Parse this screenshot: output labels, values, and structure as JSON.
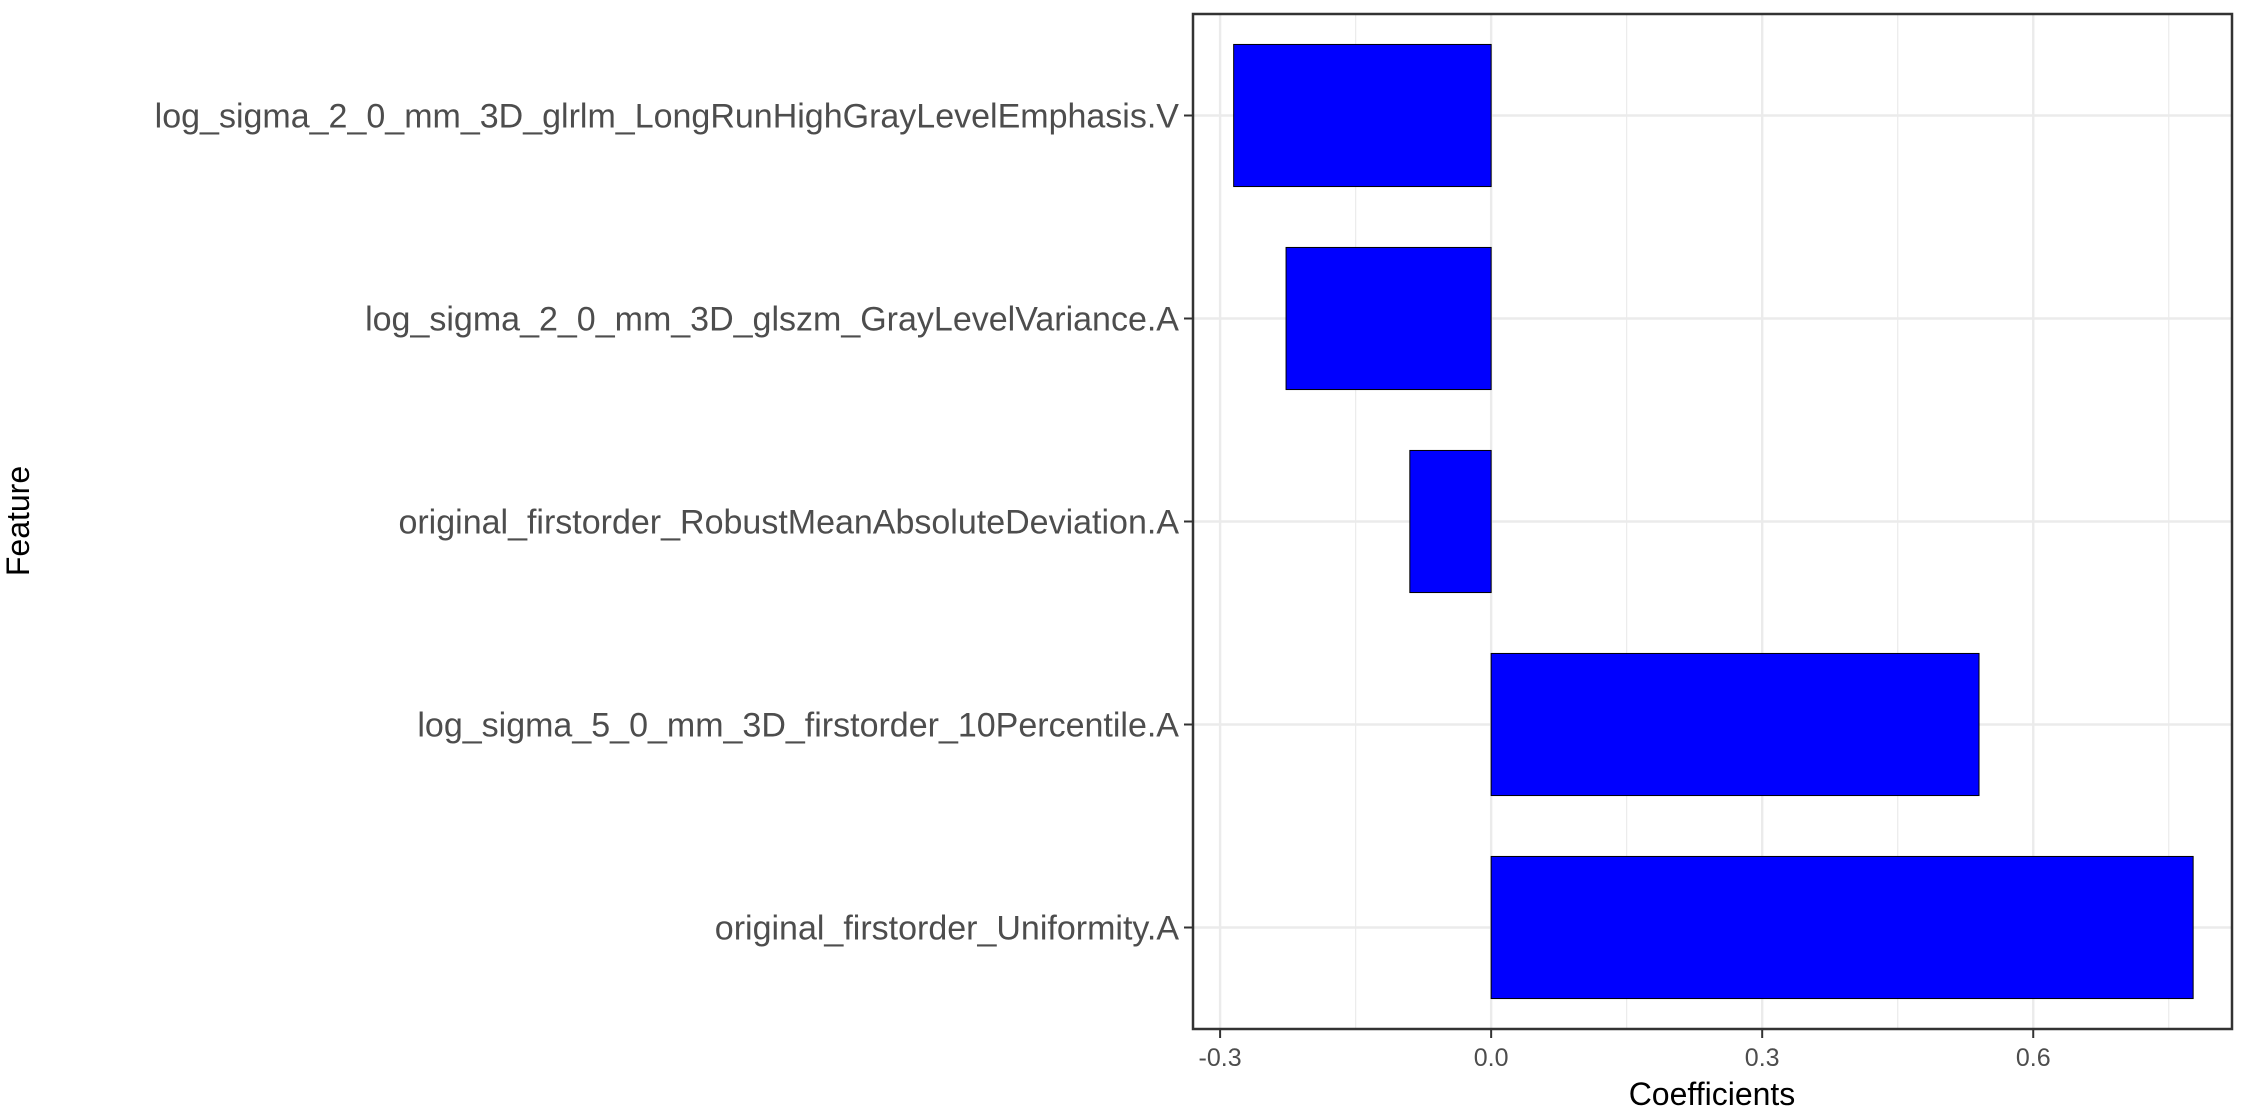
{
  "chart_data": {
    "type": "bar",
    "orientation": "horizontal",
    "categories": [
      "log_sigma_2_0_mm_3D_glrlm_LongRunHighGrayLevelEmphasis.V",
      "log_sigma_2_0_mm_3D_glszm_GrayLevelVariance.A",
      "original_firstorder_RobustMeanAbsoluteDeviation.A",
      "log_sigma_5_0_mm_3D_firstorder_10Percentile.A",
      "original_firstorder_Uniformity.A"
    ],
    "values": [
      -0.285,
      -0.227,
      -0.09,
      0.54,
      0.777
    ],
    "xlabel": "Coefficients",
    "ylabel": "Feature",
    "xlim": [
      -0.33,
      0.82
    ],
    "xticks": [
      -0.3,
      0.0,
      0.3,
      0.6
    ],
    "xtick_labels": [
      "-0.3",
      "0.0",
      "0.3",
      "0.6"
    ],
    "grid": true,
    "colors": {
      "bar": "#0000ff",
      "bar_outline": "#000000",
      "grid": "#ebebeb",
      "panel_border": "#333333"
    }
  }
}
